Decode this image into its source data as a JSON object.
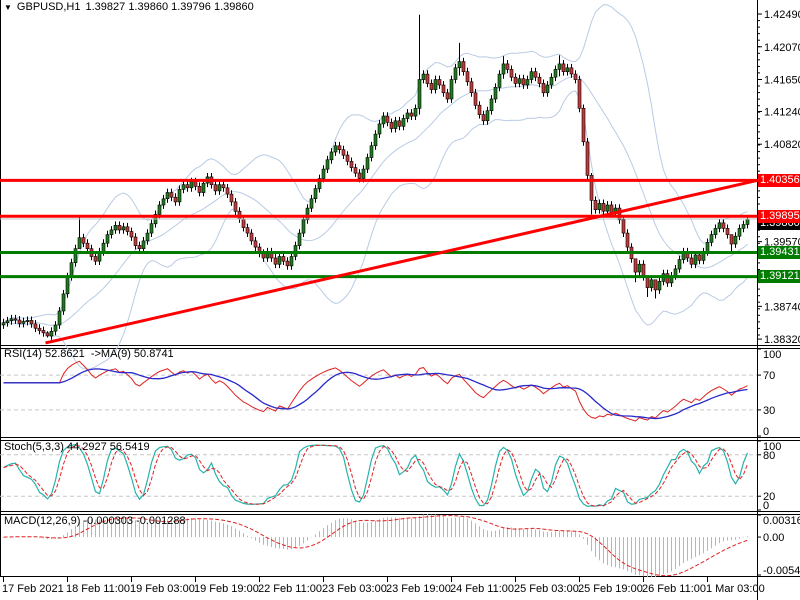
{
  "window": {
    "dropdown_icon": "▼",
    "title_symbol": "GBPUSD,H1",
    "title_ohlc": "1.39827 1.39860 1.39796 1.39860"
  },
  "colors": {
    "background": "#ffffff",
    "bull": "#207a20",
    "bear": "#c23a3a",
    "wick": "#000000",
    "bollinger": "#b9cbe4",
    "resistance": "#fe0000",
    "support": "#007c00",
    "current_price_line": "#c0c0c0",
    "trendline": "#fe0000",
    "rsi_line": "#dd2222",
    "rsi_ma": "#2929cc",
    "stoch_k": "#26b3ab",
    "stoch_d": "#dd2222",
    "macd_hist": "#b6b6b6",
    "macd_signal": "#dd2222",
    "level_dash": "#c6c6c6",
    "axis_text": "#000000",
    "badge_red": "#fe0000",
    "badge_green": "#007c00",
    "badge_black": "#000000"
  },
  "price_axis": {
    "ticks": [
      "1.42490",
      "1.42070",
      "1.41650",
      "1.41240",
      "1.40820",
      "1.39570",
      "1.38740",
      "1.38320"
    ],
    "tick_values": [
      1.4249,
      1.4207,
      1.4165,
      1.4124,
      1.4082,
      1.3957,
      1.3874,
      1.3832
    ],
    "badges": [
      {
        "text": "1.40356",
        "color": "red",
        "value": 1.40356
      },
      {
        "text": "1.39860",
        "color": "black",
        "value": 1.3986
      },
      {
        "text": "1.39895",
        "color": "red",
        "value": 1.39895
      },
      {
        "text": "1.39431",
        "color": "green",
        "value": 1.39431
      },
      {
        "text": "1.39121",
        "color": "green",
        "value": 1.39121
      }
    ]
  },
  "time_axis": {
    "labels": [
      "17 Feb 2021",
      "18 Feb 11:00",
      "19 Feb 03:00",
      "19 Feb 19:00",
      "22 Feb 11:00",
      "23 Feb 03:00",
      "23 Feb 19:00",
      "24 Feb 11:00",
      "25 Feb 03:00",
      "25 Feb 19:00",
      "26 Feb 11:00",
      "1 Mar 03:00"
    ],
    "bar_indices": [
      0,
      16,
      32,
      48,
      64,
      80,
      96,
      112,
      128,
      144,
      160,
      176
    ]
  },
  "overlays": {
    "resistance_lines": [
      1.40356,
      1.39895
    ],
    "support_lines": [
      1.39431,
      1.39121
    ],
    "current_price": 1.3986,
    "trendline": {
      "bar1": 10.5,
      "price1": 1.3827,
      "bar2": 188.8,
      "price2": 1.4036
    }
  },
  "panels": {
    "rsi": {
      "label": "RSI(14) 52.8621  ->MA(9) 50.8741",
      "scale": [
        "100",
        "70",
        "30",
        "0"
      ],
      "scale_values": [
        100,
        70,
        30,
        0
      ],
      "levels": [
        70,
        30
      ],
      "range": [
        0,
        100
      ]
    },
    "stoch": {
      "label": "Stoch(5,3,3) 44.2927 56.5419",
      "scale": [
        "100",
        "80",
        "20",
        "0"
      ],
      "scale_values": [
        100,
        80,
        20,
        0
      ],
      "levels": [
        80,
        20
      ],
      "range": [
        0,
        100
      ]
    },
    "macd": {
      "label": "MACD(12,26,9) -0.000303 -0.001288",
      "scale": [
        "0.003168",
        "0.00",
        "-0.005445"
      ],
      "scale_values": [
        0.003168,
        0.0,
        -0.005445
      ],
      "range": [
        -0.005445,
        0.003168
      ]
    }
  },
  "chart_data": {
    "type": "candlestick",
    "symbol": "GBPUSD",
    "period": "H1",
    "title": "GBPUSD,H1",
    "ylim": [
      1.38244,
      1.4267
    ],
    "bars": 187,
    "first_open": 1.385,
    "default_wick": 0.0005,
    "closes": [
      1.3853,
      1.38555,
      1.3858,
      1.38565,
      1.3852,
      1.38545,
      1.3856,
      1.38515,
      1.3846,
      1.3843,
      1.384,
      1.3836,
      1.3842,
      1.385,
      1.3868,
      1.389,
      1.3912,
      1.393,
      1.3948,
      1.3962,
      1.3955,
      1.3948,
      1.3938,
      1.3932,
      1.3944,
      1.3955,
      1.3966,
      1.3972,
      1.3978,
      1.3972,
      1.3976,
      1.397,
      1.3963,
      1.3952,
      1.3948,
      1.3958,
      1.3968,
      1.398,
      1.3992,
      1.4004,
      1.4012,
      1.402,
      1.4014,
      1.4008,
      1.4024,
      1.403,
      1.4026,
      1.4034,
      1.4028,
      1.402,
      1.4032,
      1.404,
      1.403,
      1.4022,
      1.403,
      1.4026,
      1.4018,
      1.4008,
      1.3996,
      1.3986,
      1.3975,
      1.3968,
      1.3958,
      1.395,
      1.3942,
      1.3936,
      1.3944,
      1.3936,
      1.3928,
      1.3938,
      1.3932,
      1.3926,
      1.3938,
      1.3952,
      1.3968,
      1.3985,
      1.4,
      1.4012,
      1.4025,
      1.4038,
      1.405,
      1.4062,
      1.4072,
      1.408,
      1.4075,
      1.4068,
      1.406,
      1.4052,
      1.4045,
      1.4038,
      1.405,
      1.4065,
      1.408,
      1.4095,
      1.4108,
      1.4118,
      1.411,
      1.4102,
      1.4112,
      1.4105,
      1.4115,
      1.4122,
      1.4118,
      1.4128,
      1.4165,
      1.4172,
      1.416,
      1.4152,
      1.4165,
      1.4158,
      1.4148,
      1.414,
      1.4165,
      1.418,
      1.4188,
      1.4175,
      1.4162,
      1.4148,
      1.4132,
      1.412,
      1.4112,
      1.4125,
      1.414,
      1.4155,
      1.4172,
      1.4185,
      1.4178,
      1.4168,
      1.416,
      1.4166,
      1.4158,
      1.4165,
      1.4175,
      1.4168,
      1.416,
      1.4148,
      1.4158,
      1.4168,
      1.4178,
      1.4185,
      1.4175,
      1.418,
      1.4172,
      1.4165,
      1.4128,
      1.4085,
      1.4042,
      1.401,
      1.3998,
      1.4006,
      1.3996,
      1.4004,
      1.3994,
      1.4,
      1.3985,
      1.3968,
      1.395,
      1.3935,
      1.3918,
      1.3928,
      1.3912,
      1.3898,
      1.3908,
      1.3895,
      1.3906,
      1.3916,
      1.3904,
      1.3913,
      1.3922,
      1.3934,
      1.3944,
      1.3936,
      1.3928,
      1.394,
      1.3933,
      1.3944,
      1.3956,
      1.3966,
      1.3974,
      1.3981,
      1.3974,
      1.3966,
      1.3954,
      1.3964,
      1.3974,
      1.3979,
      1.3986
    ],
    "wick_overrides": {
      "11": [
        1.3842,
        1.3834
      ],
      "19": [
        1.3988,
        1.3956
      ],
      "104": [
        1.4248,
        1.412
      ],
      "114": [
        1.4212,
        1.417
      ],
      "125": [
        1.4195,
        1.4166
      ],
      "139": [
        1.4196,
        1.4169
      ],
      "147": [
        1.4045,
        1.3992
      ],
      "158": [
        1.3935,
        1.3905
      ],
      "161": [
        1.3912,
        1.3886
      ],
      "163": [
        1.3908,
        1.3884
      ],
      "182": [
        1.3966,
        1.3944
      ]
    },
    "indicators": {
      "bollinger": {
        "period": 20,
        "deviation": 2
      },
      "rsi": {
        "period": 14,
        "ma": 9,
        "value": 52.8621,
        "ma_value": 50.8741
      },
      "stochastic": {
        "params": [
          5,
          3,
          3
        ],
        "k_value": 44.2927,
        "d_value": 56.5419
      },
      "macd": {
        "params": [
          12,
          26,
          9
        ],
        "value": -0.000303,
        "signal_value": -0.001288
      }
    }
  }
}
